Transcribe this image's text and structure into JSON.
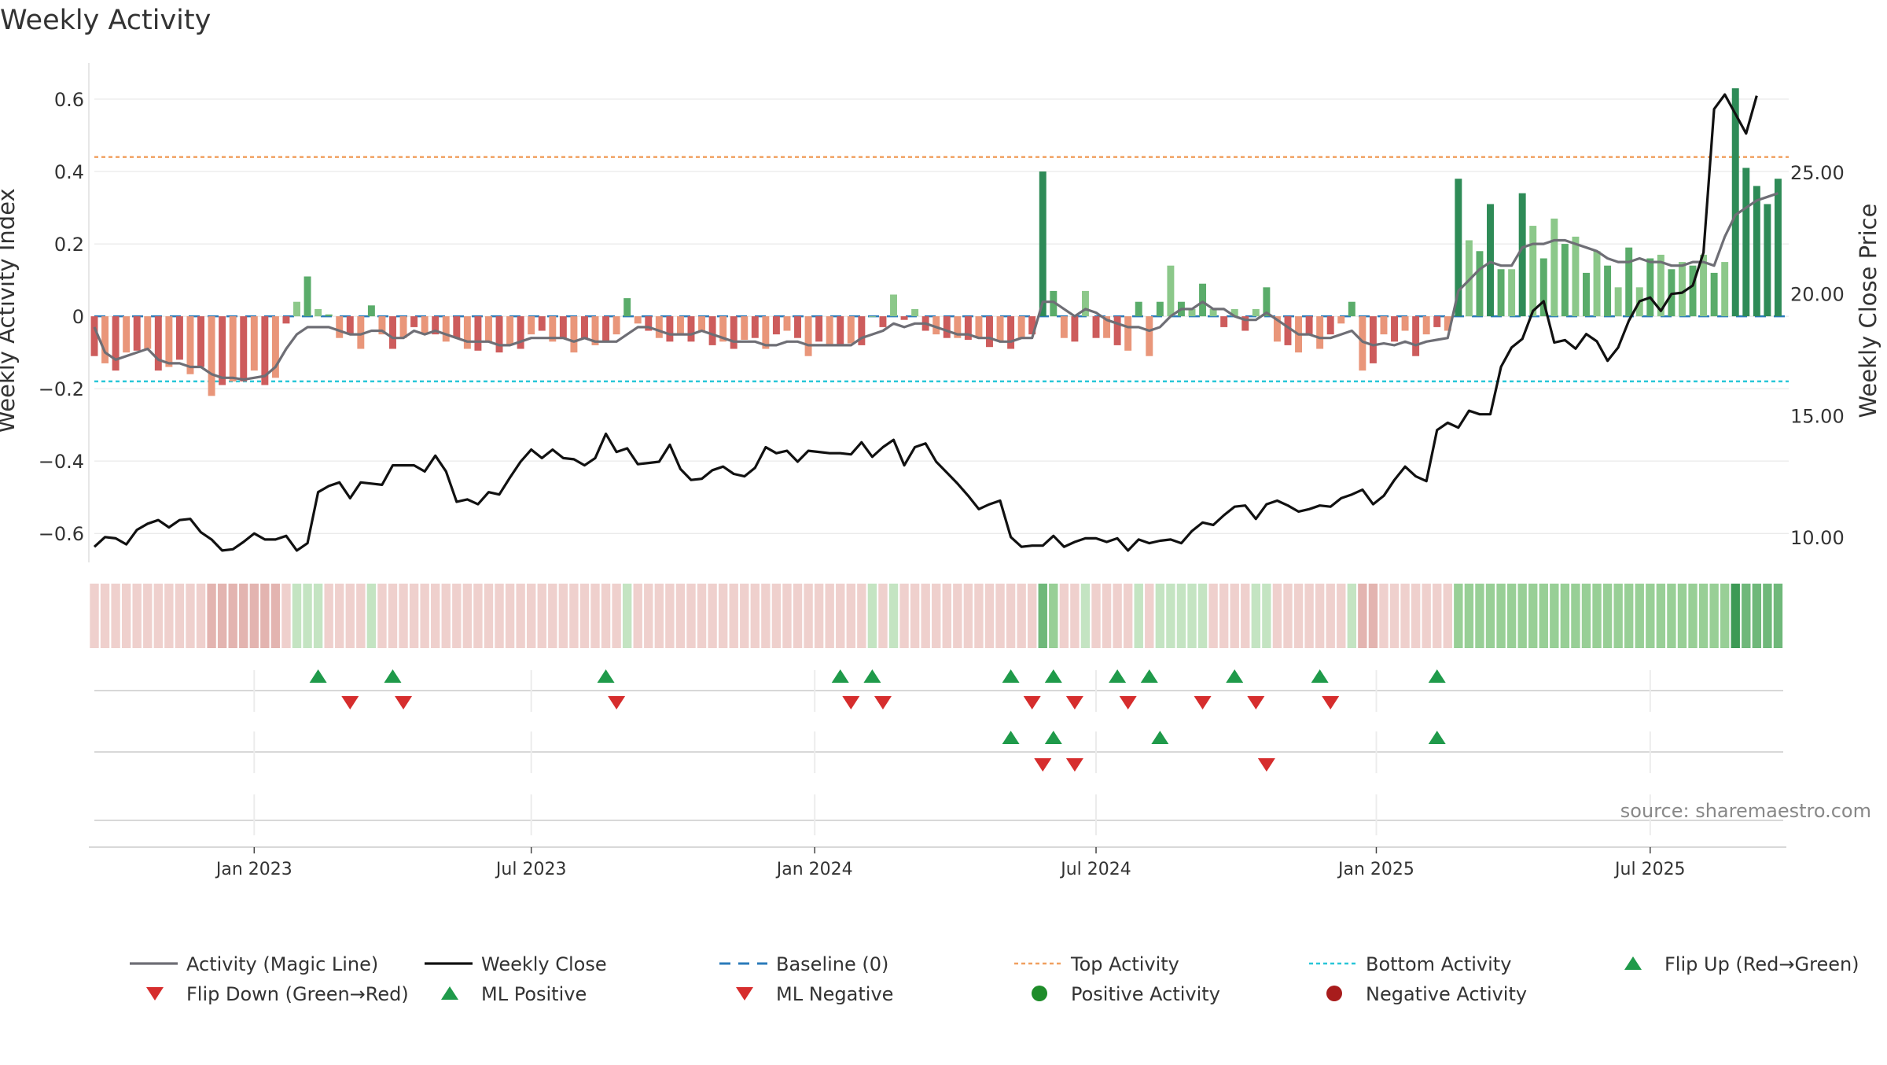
{
  "chart_data": {
    "type": "bar",
    "title": "Weekly Activity",
    "source": "source: sharemaestro.com",
    "left_axis": {
      "label": "Weekly Activity Index",
      "range": [
        -0.68,
        0.7
      ],
      "ticks": [
        {
          "v": 0.6,
          "label": "0.6"
        },
        {
          "v": 0.4,
          "label": "0.4"
        },
        {
          "v": 0.2,
          "label": "0.2"
        },
        {
          "v": 0,
          "label": "0"
        },
        {
          "v": -0.2,
          "label": "−0.2"
        },
        {
          "v": -0.4,
          "label": "−0.4"
        },
        {
          "v": -0.6,
          "label": "−0.6"
        }
      ]
    },
    "right_axis": {
      "label": "Weekly Close Price",
      "range": [
        8.96,
        29.5
      ],
      "ticks": [
        {
          "v": 25,
          "label": "25.00"
        },
        {
          "v": 20,
          "label": "20.00"
        },
        {
          "v": 15,
          "label": "15.00"
        },
        {
          "v": 10,
          "label": "10.00"
        }
      ]
    },
    "x_axis": {
      "range_weeks": [
        0,
        159
      ],
      "ticks": [
        {
          "w": 15,
          "label": "Jan 2023"
        },
        {
          "w": 41,
          "label": "Jul 2023"
        },
        {
          "w": 67.6,
          "label": "Jan 2024"
        },
        {
          "w": 94,
          "label": "Jul 2024"
        },
        {
          "w": 120.3,
          "label": "Jan 2025"
        },
        {
          "w": 146,
          "label": "Jul 2025"
        }
      ]
    },
    "reference_lines": {
      "top_activity": 0.44,
      "bottom_activity": -0.18,
      "baseline": 0
    },
    "activity": [
      -0.11,
      -0.13,
      -0.15,
      -0.1,
      -0.095,
      -0.09,
      -0.15,
      -0.14,
      -0.12,
      -0.16,
      -0.14,
      -0.22,
      -0.19,
      -0.18,
      -0.18,
      -0.15,
      -0.19,
      -0.17,
      -0.02,
      0.04,
      0.11,
      0.02,
      0.005,
      -0.06,
      -0.05,
      -0.09,
      0.03,
      -0.05,
      -0.09,
      -0.06,
      -0.03,
      -0.05,
      -0.05,
      -0.07,
      -0.06,
      -0.09,
      -0.095,
      -0.07,
      -0.1,
      -0.08,
      -0.09,
      -0.05,
      -0.04,
      -0.07,
      -0.06,
      -0.1,
      -0.06,
      -0.08,
      -0.07,
      -0.05,
      0.05,
      -0.02,
      -0.04,
      -0.06,
      -0.07,
      -0.05,
      -0.07,
      -0.04,
      -0.08,
      -0.07,
      -0.09,
      -0.065,
      -0.06,
      -0.09,
      -0.05,
      -0.04,
      -0.06,
      -0.11,
      -0.07,
      -0.08,
      -0.08,
      -0.075,
      -0.08,
      0.0,
      -0.03,
      0.06,
      -0.01,
      0.02,
      -0.04,
      -0.05,
      -0.06,
      -0.06,
      -0.065,
      -0.06,
      -0.085,
      -0.07,
      -0.09,
      -0.06,
      -0.05,
      0.4,
      0.07,
      -0.06,
      -0.07,
      0.07,
      -0.06,
      -0.06,
      -0.08,
      -0.095,
      0.04,
      -0.11,
      0.04,
      0.14,
      0.04,
      0.02,
      0.09,
      0.02,
      -0.03,
      0.02,
      -0.04,
      0.02,
      0.08,
      -0.07,
      -0.08,
      -0.1,
      -0.05,
      -0.09,
      -0.05,
      -0.02,
      0.04,
      -0.15,
      -0.13,
      -0.05,
      -0.07,
      -0.04,
      -0.11,
      -0.05,
      -0.03,
      -0.04,
      0.38,
      0.21,
      0.18,
      0.31,
      0.13,
      0.13,
      0.34,
      0.25,
      0.16,
      0.27,
      0.2,
      0.22,
      0.12,
      0.18,
      0.14,
      0.08,
      0.19,
      0.08,
      0.16,
      0.17,
      0.13,
      0.15,
      0.14,
      0.17,
      0.12,
      0.15,
      0.63,
      0.41,
      0.36,
      0.31,
      0.38
    ],
    "magic_line": [
      -0.03,
      -0.1,
      -0.12,
      -0.11,
      -0.1,
      -0.09,
      -0.12,
      -0.13,
      -0.13,
      -0.14,
      -0.14,
      -0.16,
      -0.17,
      -0.17,
      -0.175,
      -0.17,
      -0.165,
      -0.14,
      -0.09,
      -0.05,
      -0.03,
      -0.03,
      -0.03,
      -0.04,
      -0.05,
      -0.05,
      -0.04,
      -0.04,
      -0.06,
      -0.06,
      -0.04,
      -0.05,
      -0.04,
      -0.05,
      -0.06,
      -0.07,
      -0.07,
      -0.07,
      -0.08,
      -0.08,
      -0.07,
      -0.06,
      -0.06,
      -0.06,
      -0.06,
      -0.07,
      -0.06,
      -0.07,
      -0.07,
      -0.07,
      -0.05,
      -0.03,
      -0.03,
      -0.04,
      -0.05,
      -0.05,
      -0.05,
      -0.04,
      -0.05,
      -0.06,
      -0.07,
      -0.07,
      -0.07,
      -0.08,
      -0.08,
      -0.07,
      -0.07,
      -0.08,
      -0.08,
      -0.08,
      -0.08,
      -0.08,
      -0.06,
      -0.05,
      -0.04,
      -0.02,
      -0.03,
      -0.02,
      -0.02,
      -0.03,
      -0.04,
      -0.05,
      -0.05,
      -0.06,
      -0.06,
      -0.07,
      -0.07,
      -0.06,
      -0.06,
      0.04,
      0.04,
      0.02,
      0.0,
      0.02,
      0.01,
      -0.01,
      -0.02,
      -0.03,
      -0.03,
      -0.04,
      -0.03,
      0.0,
      0.02,
      0.02,
      0.04,
      0.02,
      0.02,
      0.0,
      -0.01,
      -0.01,
      0.01,
      -0.01,
      -0.03,
      -0.05,
      -0.05,
      -0.06,
      -0.06,
      -0.05,
      -0.04,
      -0.07,
      -0.08,
      -0.075,
      -0.08,
      -0.07,
      -0.08,
      -0.07,
      -0.065,
      -0.06,
      0.07,
      0.1,
      0.13,
      0.15,
      0.14,
      0.14,
      0.19,
      0.2,
      0.2,
      0.21,
      0.21,
      0.2,
      0.19,
      0.18,
      0.16,
      0.15,
      0.15,
      0.16,
      0.15,
      0.15,
      0.14,
      0.14,
      0.15,
      0.15,
      0.14,
      0.22,
      0.28,
      0.3,
      0.32,
      0.33,
      0.34
    ],
    "weekly_close": [
      9.6,
      10.0,
      9.95,
      9.7,
      10.3,
      10.55,
      10.7,
      10.4,
      10.7,
      10.75,
      10.2,
      9.9,
      9.45,
      9.5,
      9.8,
      10.15,
      9.9,
      9.9,
      10.05,
      9.45,
      9.75,
      11.85,
      12.1,
      12.25,
      11.6,
      12.25,
      12.2,
      12.15,
      12.95,
      12.95,
      12.95,
      12.7,
      13.35,
      12.7,
      11.45,
      11.55,
      11.35,
      11.85,
      11.75,
      12.45,
      13.1,
      13.6,
      13.25,
      13.6,
      13.25,
      13.2,
      12.95,
      13.25,
      14.25,
      13.5,
      13.65,
      13.0,
      13.05,
      13.1,
      13.8,
      12.8,
      12.35,
      12.4,
      12.75,
      12.9,
      12.6,
      12.5,
      12.85,
      13.7,
      13.45,
      13.55,
      13.1,
      13.55,
      13.5,
      13.45,
      13.45,
      13.4,
      13.9,
      13.3,
      13.7,
      14.0,
      12.95,
      13.7,
      13.85,
      13.1,
      12.65,
      12.2,
      11.7,
      11.15,
      11.35,
      11.5,
      10.0,
      9.6,
      9.65,
      9.65,
      10.05,
      9.6,
      9.8,
      9.95,
      9.95,
      9.8,
      9.95,
      9.45,
      9.9,
      9.75,
      9.85,
      9.9,
      9.75,
      10.25,
      10.6,
      10.5,
      10.9,
      11.25,
      11.3,
      10.75,
      11.35,
      11.5,
      11.3,
      11.05,
      11.15,
      11.3,
      11.25,
      11.6,
      11.75,
      11.95,
      11.35,
      11.7,
      12.35,
      12.9,
      12.5,
      12.3,
      14.4,
      14.7,
      14.5,
      15.2,
      15.05,
      15.05,
      17.0,
      17.8,
      18.15,
      19.3,
      19.7,
      18.0,
      18.1,
      17.75,
      18.35,
      18.05,
      17.25,
      17.8,
      18.9,
      19.7,
      19.85,
      19.3,
      20.0,
      20.05,
      20.35,
      21.7,
      27.6,
      28.2,
      27.4,
      26.6,
      28.15
    ],
    "activity_strip_levels": [
      -3,
      -3,
      -3,
      -3,
      -3,
      -3,
      -3,
      -3,
      -3,
      -3,
      -3,
      -4,
      -4,
      -4,
      -4,
      -4,
      -4,
      -4,
      -3,
      3,
      3,
      3,
      -3,
      -3,
      -3,
      -3,
      3,
      -3,
      -3,
      -3,
      -3,
      -3,
      -3,
      -3,
      -3,
      -3,
      -3,
      -3,
      -3,
      -3,
      -3,
      -3,
      -3,
      -3,
      -3,
      -3,
      -3,
      -3,
      -3,
      -3,
      3,
      -3,
      -3,
      -3,
      -3,
      -3,
      -3,
      -3,
      -3,
      -3,
      -3,
      -3,
      -3,
      -3,
      -3,
      -3,
      -3,
      -3,
      -3,
      -3,
      -3,
      -3,
      -3,
      3,
      -3,
      3,
      -3,
      -3,
      -3,
      -3,
      -3,
      -3,
      -3,
      -3,
      -3,
      -3,
      -3,
      -3,
      -3,
      5,
      4,
      -3,
      -3,
      3,
      -3,
      -3,
      -3,
      -3,
      3,
      -3,
      3,
      3,
      3,
      3,
      3,
      -3,
      -3,
      -3,
      -3,
      3,
      3,
      -3,
      -3,
      -3,
      -3,
      -3,
      -3,
      -3,
      3,
      -4,
      -4,
      -3,
      -3,
      -3,
      -3,
      -3,
      -3,
      -3,
      4,
      4,
      4,
      4,
      4,
      4,
      4,
      4,
      4,
      4,
      4,
      4,
      4,
      4,
      4,
      4,
      4,
      4,
      4,
      4,
      4,
      4,
      4,
      4,
      4,
      4,
      6,
      5,
      5,
      5,
      5
    ],
    "flip_up_weeks": [
      21,
      28,
      48,
      70,
      73,
      86,
      90,
      96,
      99,
      107,
      115,
      126
    ],
    "flip_down_weeks": [
      24,
      29,
      49,
      71,
      74,
      88,
      92,
      97,
      104,
      109,
      116
    ],
    "ml_positive_weeks": [
      86,
      90,
      100,
      126
    ],
    "ml_negative_weeks": [
      89,
      92,
      110
    ],
    "legend": [
      {
        "key": "magic_line",
        "label": "Activity (Magic Line)",
        "symbol": "line",
        "color": "#6e6e75"
      },
      {
        "key": "weekly_close",
        "label": "Weekly Close",
        "symbol": "line",
        "color": "#111111"
      },
      {
        "key": "baseline",
        "label": "Baseline (0)",
        "symbol": "dash",
        "color": "#2b7bba"
      },
      {
        "key": "top_activity",
        "label": "Top Activity",
        "symbol": "dot-dash",
        "color": "#f0a060"
      },
      {
        "key": "bottom_activity",
        "label": "Bottom Activity",
        "symbol": "dot-dash",
        "color": "#29c6d8"
      },
      {
        "key": "flip_up",
        "label": "Flip Up (Red→Green)",
        "symbol": "tri-up",
        "color": "#1f9a4a"
      },
      {
        "key": "flip_down",
        "label": "Flip Down (Green→Red)",
        "symbol": "tri-down",
        "color": "#d62d2d"
      },
      {
        "key": "ml_positive",
        "label": "ML Positive",
        "symbol": "tri-up",
        "color": "#1f9a4a"
      },
      {
        "key": "ml_negative",
        "label": "ML Negative",
        "symbol": "tri-down",
        "color": "#d62d2d"
      },
      {
        "key": "positive_activity",
        "label": "Positive Activity",
        "symbol": "circle",
        "color": "#1e8c2a"
      },
      {
        "key": "negative_activity",
        "label": "Negative Activity",
        "symbol": "circle",
        "color": "#a81c1c"
      }
    ],
    "colors": {
      "positive_strong": "#2e8b57",
      "positive_mid": "#5aac6a",
      "positive_light": "#8cc88a",
      "negative_strong": "#cd5c5c",
      "negative_light": "#e9967a",
      "magic_line": "#6e6e75",
      "weekly_close": "#111111",
      "baseline": "#2b7bba",
      "top_activity": "#f0a060",
      "bottom_activity": "#29c6d8",
      "marker_up": "#1f9a4a",
      "marker_down": "#d62d2d",
      "grid": "#e4e4e4"
    }
  }
}
